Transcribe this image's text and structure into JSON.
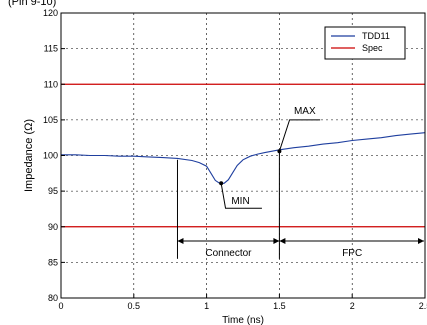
{
  "chart_data": {
    "type": "line",
    "title": "(Pin 9-10)",
    "xlabel": "Time (ns)",
    "ylabel": "Impedance (Ω)",
    "xlim": [
      0,
      2.5
    ],
    "ylim": [
      80,
      120
    ],
    "xticks": [
      0,
      0.5,
      1,
      1.5,
      2,
      2.5
    ],
    "xtick_labels": [
      "0",
      "0.5",
      "1",
      "1.5",
      "2",
      "2.5"
    ],
    "yticks": [
      80,
      85,
      90,
      95,
      100,
      105,
      110,
      115,
      120
    ],
    "ytick_labels": [
      "80",
      "85",
      "90",
      "95",
      "100",
      "105",
      "110",
      "115",
      "120"
    ],
    "grid": true,
    "legend_position": "top-right",
    "series": [
      {
        "name": "TDD11",
        "color": "#1f3f9f",
        "x": [
          0,
          0.1,
          0.2,
          0.3,
          0.4,
          0.5,
          0.6,
          0.7,
          0.8,
          0.9,
          0.95,
          1.0,
          1.03,
          1.06,
          1.09,
          1.12,
          1.15,
          1.18,
          1.21,
          1.25,
          1.3,
          1.35,
          1.4,
          1.45,
          1.5,
          1.6,
          1.7,
          1.8,
          1.9,
          2.0,
          2.1,
          2.2,
          2.3,
          2.4,
          2.5
        ],
        "y": [
          100.1,
          100.1,
          100.0,
          100.0,
          99.9,
          99.9,
          99.8,
          99.7,
          99.6,
          99.3,
          99.0,
          98.5,
          97.5,
          96.5,
          96.1,
          96.1,
          96.6,
          97.6,
          98.6,
          99.4,
          99.9,
          100.2,
          100.4,
          100.6,
          100.8,
          101.1,
          101.3,
          101.6,
          101.8,
          102.1,
          102.3,
          102.5,
          102.8,
          103.0,
          103.2
        ]
      },
      {
        "name": "Spec",
        "color": "#cc0000",
        "lines_y": [
          110,
          90
        ]
      }
    ],
    "annotations": [
      {
        "label": "MIN",
        "point": [
          1.1,
          96.1
        ]
      },
      {
        "label": "MAX",
        "point": [
          1.5,
          100.6
        ]
      },
      {
        "label": "Connector",
        "x_range": [
          0.8,
          1.5
        ],
        "y": 88
      },
      {
        "label": "FPC",
        "x_range": [
          1.5,
          2.5
        ],
        "y": 88
      }
    ]
  }
}
